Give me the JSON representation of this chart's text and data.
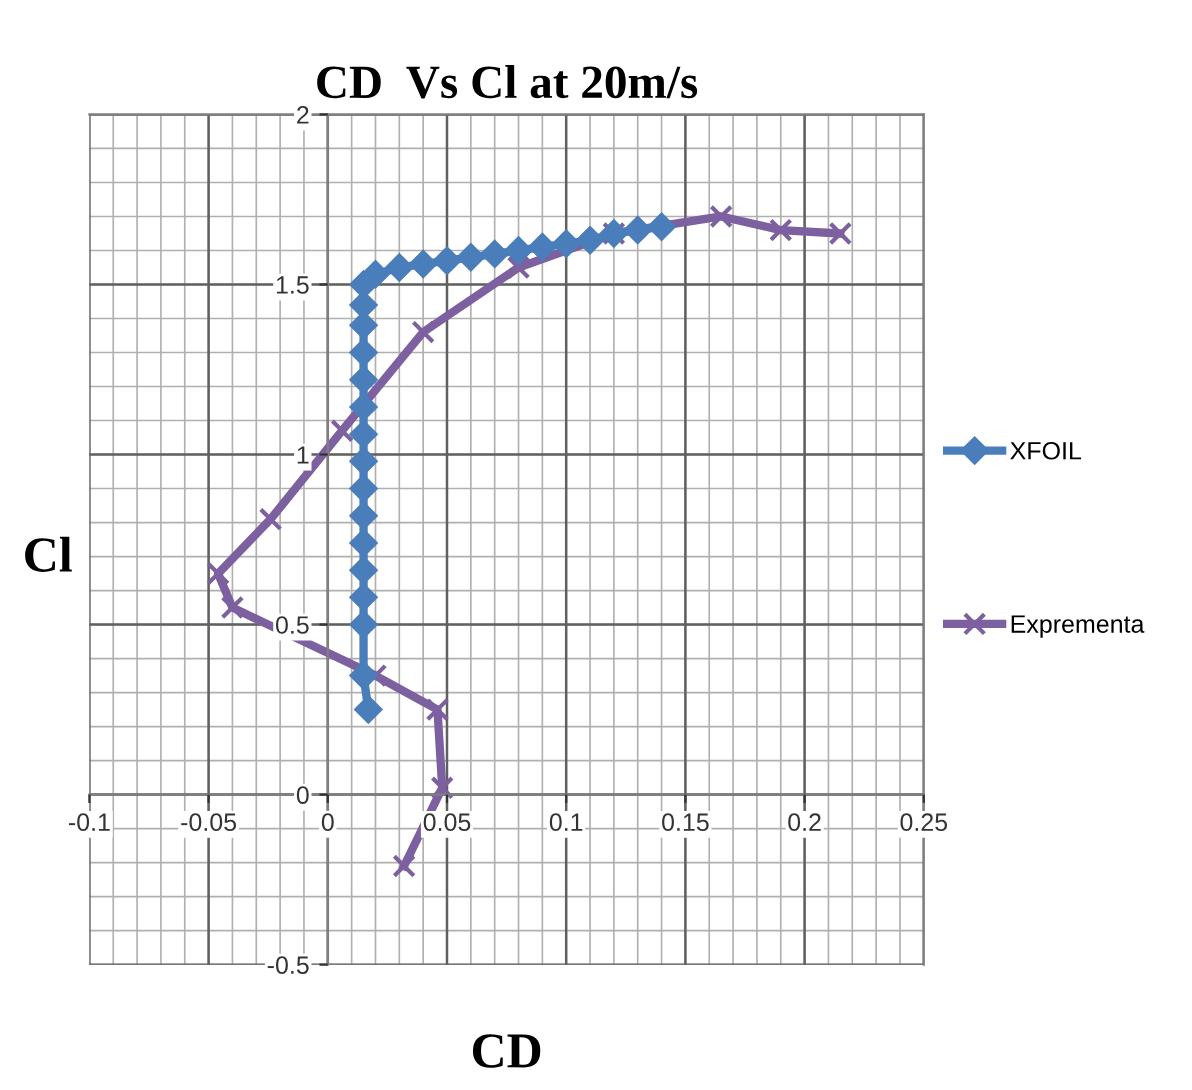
{
  "chart_data": {
    "type": "line",
    "title": "CD  Vs Cl at 20m/s",
    "xlabel": "CD",
    "ylabel": "Cl",
    "xlim": [
      -0.1,
      0.25
    ],
    "xticks": [
      -0.1,
      -0.05,
      0,
      0.05,
      0.1,
      0.15,
      0.2,
      0.25
    ],
    "ylim": [
      -0.5,
      2
    ],
    "yticks": [
      -0.5,
      0,
      0.5,
      1,
      1.5,
      2
    ],
    "grid": true,
    "legend": "right",
    "series": [
      {
        "name": "XFOIL",
        "color": "#4a7ebb",
        "marker": "diamond",
        "x": [
          0.017,
          0.015,
          0.015,
          0.015,
          0.015,
          0.015,
          0.015,
          0.015,
          0.015,
          0.015,
          0.015,
          0.015,
          0.015,
          0.015,
          0.015,
          0.015,
          0.02,
          0.03,
          0.04,
          0.05,
          0.06,
          0.07,
          0.08,
          0.09,
          0.1,
          0.11,
          0.12,
          0.13,
          0.14
        ],
        "values": [
          0.25,
          0.35,
          0.5,
          0.58,
          0.66,
          0.74,
          0.82,
          0.9,
          0.98,
          1.06,
          1.14,
          1.22,
          1.3,
          1.38,
          1.44,
          1.5,
          1.53,
          1.55,
          1.56,
          1.57,
          1.58,
          1.59,
          1.6,
          1.61,
          1.62,
          1.63,
          1.65,
          1.66,
          1.67
        ]
      },
      {
        "name": "Exprementa",
        "color": "#7d60a0",
        "marker": "cross",
        "x": [
          0.032,
          0.048,
          0.046,
          0.02,
          -0.04,
          -0.046,
          -0.024,
          0.006,
          0.04,
          0.08,
          0.12,
          0.165,
          0.19,
          0.215
        ],
        "values": [
          -0.21,
          0.02,
          0.25,
          0.35,
          0.55,
          0.65,
          0.81,
          1.07,
          1.36,
          1.55,
          1.65,
          1.7,
          1.66,
          1.65
        ]
      }
    ]
  }
}
